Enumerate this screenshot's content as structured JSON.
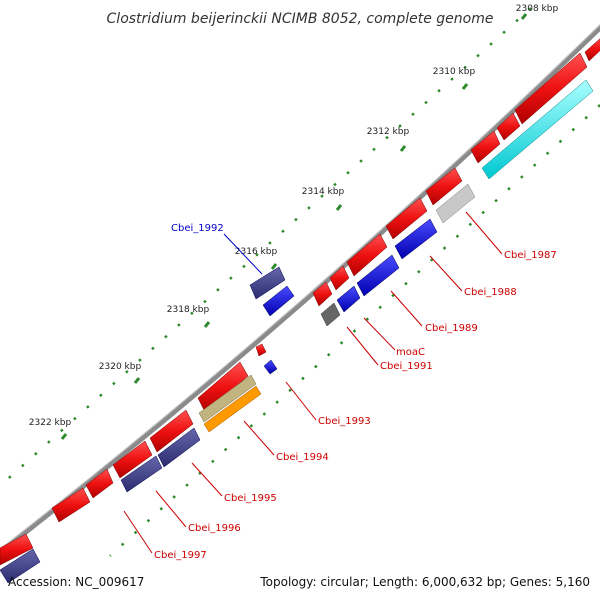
{
  "title": "Clostridium beijerinckii NCIMB 8052, complete genome",
  "footer": {
    "accession": "Accession: NC_009617",
    "summary": "Topology: circular; Length: 6,000,632 bp; Genes: 5,160"
  },
  "colors": {
    "backbone": "#8a8a8a",
    "tick": "#2a8a2a",
    "forward_gene": "#ee1111",
    "reverse_gene": "#1111ee",
    "cds_dark": "#3d3d8c",
    "label_red": "#cc0000",
    "label_blue": "#0000cc"
  },
  "ticks": [
    {
      "label": "2308 kbp"
    },
    {
      "label": "2310 kbp"
    },
    {
      "label": "2312 kbp"
    },
    {
      "label": "2314 kbp"
    },
    {
      "label": "2316 kbp"
    },
    {
      "label": "2318 kbp"
    },
    {
      "label": "2320 kbp"
    },
    {
      "label": "2322 kbp"
    }
  ],
  "gene_labels": [
    {
      "name": "Cbei_1987",
      "color": "#cc0000"
    },
    {
      "name": "Cbei_1988",
      "color": "#cc0000"
    },
    {
      "name": "Cbei_1989",
      "color": "#cc0000"
    },
    {
      "name": "moaC",
      "color": "#cc0000"
    },
    {
      "name": "Cbei_1991",
      "color": "#cc0000"
    },
    {
      "name": "Cbei_1992",
      "color": "#0000cc"
    },
    {
      "name": "Cbei_1993",
      "color": "#cc0000"
    },
    {
      "name": "Cbei_1994",
      "color": "#cc0000"
    },
    {
      "name": "Cbei_1995",
      "color": "#cc0000"
    },
    {
      "name": "Cbei_1996",
      "color": "#cc0000"
    },
    {
      "name": "Cbei_1997",
      "color": "#cc0000"
    }
  ]
}
